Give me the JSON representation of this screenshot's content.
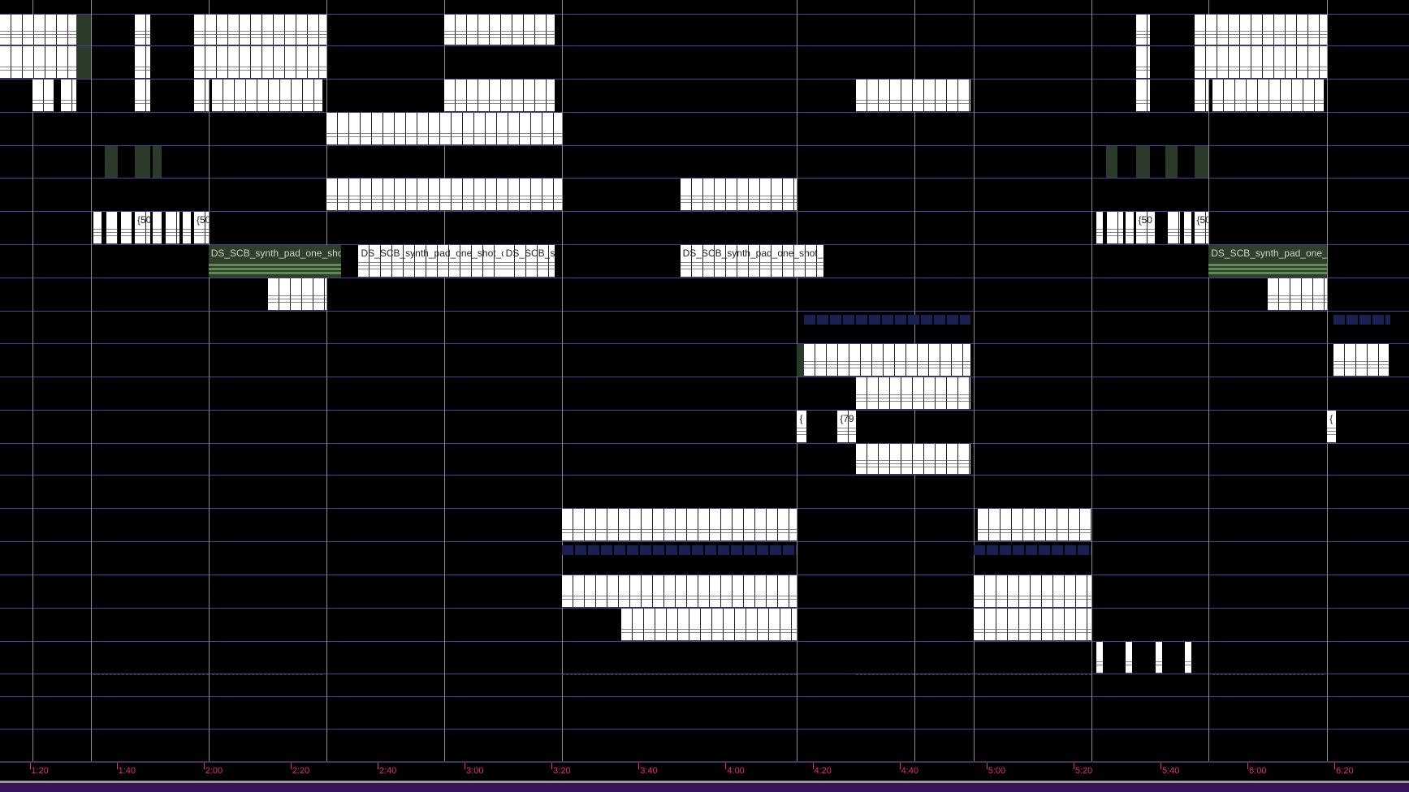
{
  "timeline": {
    "labels": [
      "1:20",
      "1:40",
      "2:00",
      "2:20",
      "2:40",
      "3:00",
      "3:20",
      "3:40",
      "4:00",
      "4:20",
      "4:40",
      "5:00",
      "5:20",
      "5:40",
      "6:00",
      "6:20"
    ]
  },
  "clip_labels": {
    "pad1": "DS_SCB_synth_pad_one_shot",
    "pad2": "DS_SCB_synth_pad_one_shot_d",
    "pad3": "DS_SCB_sy",
    "pad4": "DS_SCB_synth_pad_one_shot_o",
    "pad5": "DS_SCB_synth_pad_one_s",
    "n50": "{50",
    "n79": "{79",
    "brace": "{"
  },
  "colors": {
    "background": "#000000",
    "track_divider": "#4a3f9a",
    "time_label": "#e0307a",
    "scrollbar": "#3a1458"
  }
}
